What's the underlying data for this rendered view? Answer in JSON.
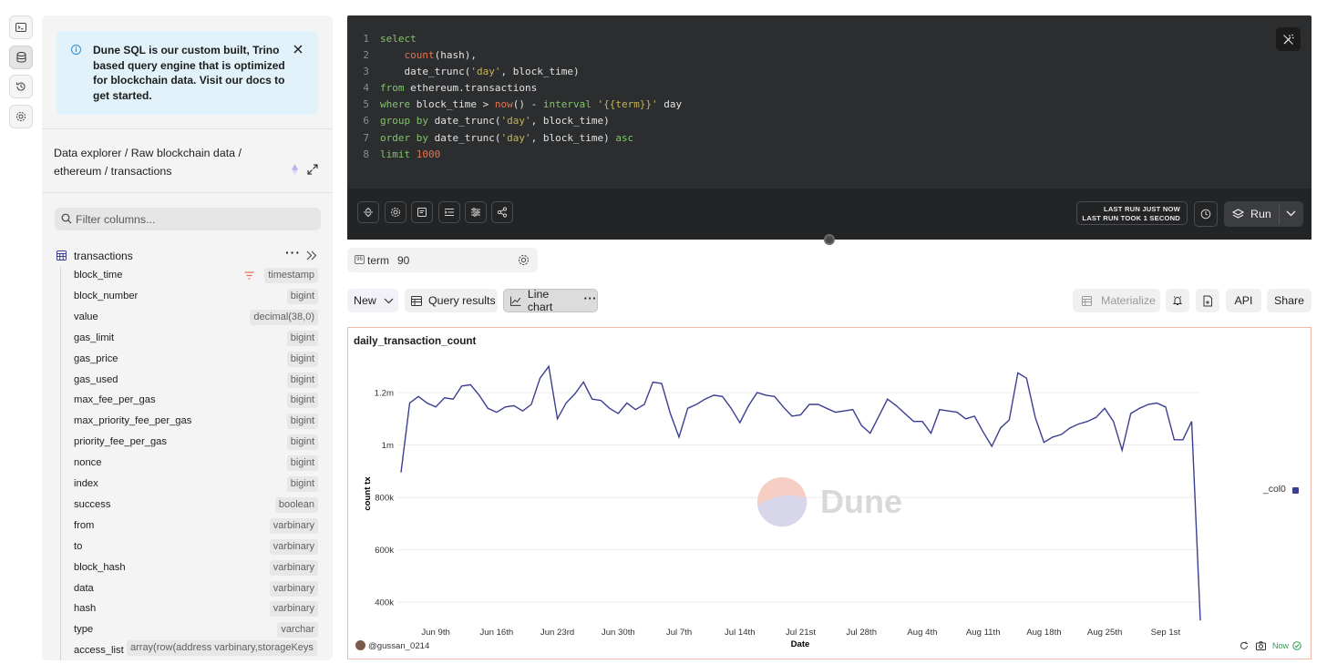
{
  "rail": {
    "items": [
      "terminal-icon",
      "database-icon",
      "history-icon",
      "settings-icon"
    ]
  },
  "notice": {
    "text": "Dune SQL is our custom built, Trino based query engine that is optimized for blockchain data. Visit our docs to get started."
  },
  "breadcrumb": "Data explorer / Raw blockchain data / ethereum / transactions",
  "filter": {
    "placeholder": "Filter columns..."
  },
  "table": {
    "name": "transactions",
    "columns": [
      {
        "name": "block_time",
        "type": "timestamp",
        "filtered": true
      },
      {
        "name": "block_number",
        "type": "bigint"
      },
      {
        "name": "value",
        "type": "decimal(38,0)"
      },
      {
        "name": "gas_limit",
        "type": "bigint"
      },
      {
        "name": "gas_price",
        "type": "bigint"
      },
      {
        "name": "gas_used",
        "type": "bigint"
      },
      {
        "name": "max_fee_per_gas",
        "type": "bigint"
      },
      {
        "name": "max_priority_fee_per_gas",
        "type": "bigint"
      },
      {
        "name": "priority_fee_per_gas",
        "type": "bigint"
      },
      {
        "name": "nonce",
        "type": "bigint"
      },
      {
        "name": "index",
        "type": "bigint"
      },
      {
        "name": "success",
        "type": "boolean"
      },
      {
        "name": "from",
        "type": "varbinary"
      },
      {
        "name": "to",
        "type": "varbinary"
      },
      {
        "name": "block_hash",
        "type": "varbinary"
      },
      {
        "name": "data",
        "type": "varbinary"
      },
      {
        "name": "hash",
        "type": "varbinary"
      },
      {
        "name": "type",
        "type": "varchar"
      },
      {
        "name": "access_list",
        "type": "array(row(address varbinary,storageKeys"
      }
    ]
  },
  "editor": {
    "lines": [
      "select",
      "    count(hash),",
      "    date_trunc('day', block_time)",
      "from ethereum.transactions",
      "where block_time > now() - interval '{{term}}' day",
      "group by date_trunc('day', block_time)",
      "order by date_trunc('day', block_time) asc",
      "limit 1000"
    ],
    "run_info_line1": "LAST RUN JUST NOW",
    "run_info_line2": "LAST RUN TOOK 1 SECOND",
    "run_label": "Run"
  },
  "param": {
    "name": "term",
    "value": "90"
  },
  "toolbar": {
    "new_label": "New",
    "query_results_label": "Query results",
    "line_chart_label": "Line chart",
    "materialize_label": "Materialize",
    "api_label": "API",
    "share_label": "Share"
  },
  "chart_footer": {
    "author": "@gussan_0214",
    "status": "Now"
  },
  "watermark": "Dune",
  "colors": {
    "line": "#3b3f91",
    "accent": "#e5734f",
    "notice_bg": "#e1f2fb",
    "editor_bg": "#2b2d2f"
  },
  "chart_data": {
    "type": "line",
    "title": "daily_transaction_count",
    "xlabel": "Date",
    "ylabel": "count tx",
    "ylim": [
      310000,
      1360000
    ],
    "yticks": [
      400000,
      600000,
      800000,
      1000000,
      1200000
    ],
    "ytick_labels": [
      "400k",
      "600k",
      "800k",
      "1m",
      "1.2m"
    ],
    "xtick_labels": [
      "Jun 9th",
      "Jun 16th",
      "Jun 23rd",
      "Jun 30th",
      "Jul 7th",
      "Jul 14th",
      "Jul 21st",
      "Jul 28th",
      "Aug 4th",
      "Aug 11th",
      "Aug 18th",
      "Aug 25th",
      "Sep 1st"
    ],
    "xtick_index": [
      4,
      11,
      18,
      25,
      32,
      39,
      46,
      53,
      60,
      67,
      74,
      81,
      88
    ],
    "legend": "right",
    "grid": true,
    "series": [
      {
        "name": "_col0",
        "values": [
          895000,
          1160000,
          1185000,
          1160000,
          1145000,
          1180000,
          1175000,
          1225000,
          1230000,
          1190000,
          1140000,
          1125000,
          1145000,
          1150000,
          1130000,
          1155000,
          1255000,
          1300000,
          1100000,
          1160000,
          1195000,
          1240000,
          1175000,
          1170000,
          1140000,
          1120000,
          1160000,
          1135000,
          1155000,
          1240000,
          1235000,
          1120000,
          1030000,
          1140000,
          1155000,
          1175000,
          1190000,
          1185000,
          1140000,
          1085000,
          1150000,
          1200000,
          1190000,
          1185000,
          1145000,
          1110000,
          1115000,
          1155000,
          1155000,
          1140000,
          1125000,
          1130000,
          1135000,
          1075000,
          1045000,
          1110000,
          1175000,
          1150000,
          1120000,
          1090000,
          1090000,
          1045000,
          1135000,
          1130000,
          1125000,
          1100000,
          1110000,
          1050000,
          995000,
          1065000,
          1095000,
          1275000,
          1255000,
          1105000,
          1010000,
          1030000,
          1040000,
          1065000,
          1080000,
          1090000,
          1105000,
          1140000,
          1090000,
          980000,
          1120000,
          1140000,
          1155000,
          1160000,
          1145000,
          1020000,
          1020000,
          1090000,
          330000
        ]
      }
    ]
  }
}
